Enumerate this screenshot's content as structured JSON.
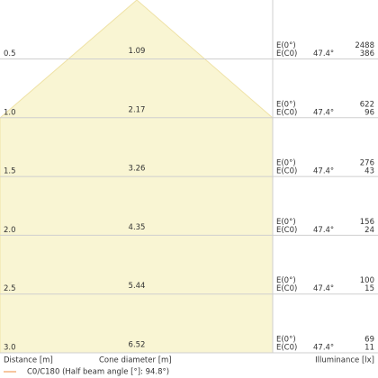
{
  "rows": [
    {
      "distance": "0.5",
      "diameter": "1.09",
      "label_top": "E(0°)",
      "label_bottom": "E(C0)",
      "angle": "47.4°",
      "value_top": "2488",
      "value_bottom": "386"
    },
    {
      "distance": "1.0",
      "diameter": "2.17",
      "label_top": "E(0°)",
      "label_bottom": "E(C0)",
      "angle": "47.4°",
      "value_top": "622",
      "value_bottom": "96"
    },
    {
      "distance": "1.5",
      "diameter": "3.26",
      "label_top": "E(0°)",
      "label_bottom": "E(C0)",
      "angle": "47.4°",
      "value_top": "276",
      "value_bottom": "43"
    },
    {
      "distance": "2.0",
      "diameter": "4.35",
      "label_top": "E(0°)",
      "label_bottom": "E(C0)",
      "angle": "47.4°",
      "value_top": "156",
      "value_bottom": "24"
    },
    {
      "distance": "2.5",
      "diameter": "5.44",
      "label_top": "E(0°)",
      "label_bottom": "E(C0)",
      "angle": "47.4°",
      "value_top": "100",
      "value_bottom": "15"
    },
    {
      "distance": "3.0",
      "diameter": "6.52",
      "label_top": "E(0°)",
      "label_bottom": "E(C0)",
      "angle": "47.4°",
      "value_top": "69",
      "value_bottom": "11"
    }
  ],
  "footer": {
    "distance_label": "Distance [m]",
    "diameter_label": "Cone diameter [m]",
    "illuminance_label": "Illuminance [lx]"
  },
  "legend": {
    "label": "C0/C180 (Half beam angle [°]: 94.8°)"
  }
}
